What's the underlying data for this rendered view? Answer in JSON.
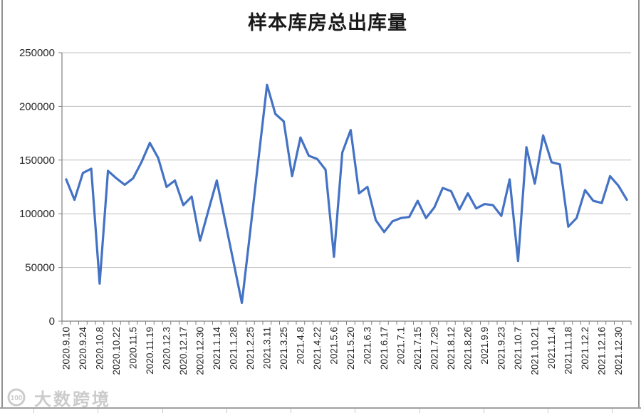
{
  "chart_data": {
    "type": "line",
    "title": "样本库房总出库量",
    "x_labels": [
      "2020.9.10",
      "2020.9.24",
      "2020.10.8",
      "2020.10.22",
      "2020.11.5",
      "2020.11.19",
      "2020.12.3",
      "2020.12.17",
      "2020.12.30",
      "2021.1.14",
      "2021.1.28",
      "2021.2.25",
      "2021.3.11",
      "2021.3.25",
      "2021.4.8",
      "2021.4.22",
      "2021.5.6",
      "2021.5.20",
      "2021.6.3",
      "2021.6.17",
      "2021.7.1",
      "2021.7.15",
      "2021.7.29",
      "2021.8.12",
      "2021.8.26",
      "2021.9.9",
      "2021.9.23",
      "2021.10.7",
      "2021.10.21",
      "2021.11.4",
      "2021.11.18",
      "2021.12.2",
      "2021.12.16",
      "2021.12.30"
    ],
    "label_step": 2,
    "values": [
      132000,
      113000,
      138000,
      142000,
      35000,
      140000,
      133000,
      127000,
      133000,
      148000,
      166000,
      152000,
      125000,
      131000,
      108000,
      116000,
      75000,
      103000,
      131000,
      93000,
      55000,
      17000,
      84000,
      152000,
      220000,
      193000,
      186000,
      135000,
      171000,
      154000,
      151000,
      141000,
      60000,
      157000,
      178000,
      119000,
      125000,
      94000,
      83000,
      93000,
      96000,
      97000,
      112000,
      96000,
      106000,
      124000,
      121000,
      104000,
      119000,
      105000,
      109000,
      108000,
      98000,
      132000,
      56000,
      162000,
      128000,
      173000,
      148000,
      146000,
      88000,
      96000,
      122000,
      112000,
      110000,
      135000,
      126000,
      113000
    ],
    "y_ticks": [
      0,
      50000,
      100000,
      150000,
      200000,
      250000
    ],
    "ylim": [
      0,
      250000
    ],
    "grid": true,
    "legend": "none",
    "line_color": "#4472C4",
    "gridline_color": "#bfbfbf",
    "axis_color": "#808080",
    "label_color": "#262626"
  },
  "watermark": {
    "logo_label": "100",
    "text": "大数跨境"
  }
}
